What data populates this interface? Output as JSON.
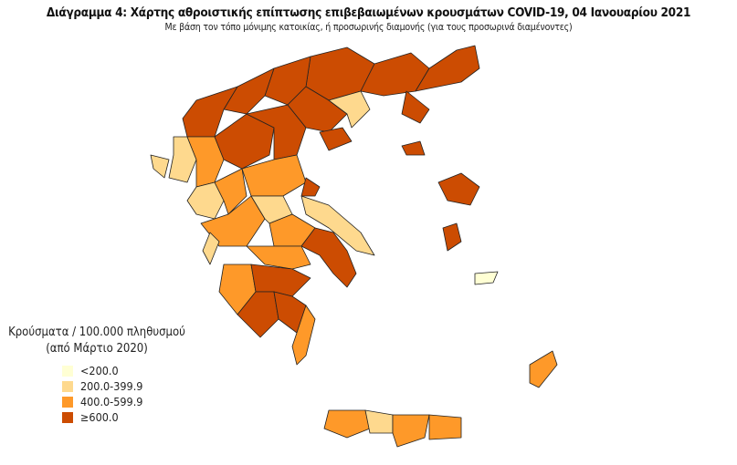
{
  "title": "Διάγραμμα 4: Χάρτης αθροιστικής επίπτωσης επιβεβαιωμένων κρουσμάτων COVID-19, 04 Ιανουαρίου 2021",
  "subtitle": "Με βάση τον τόπο μόνιμης κατοικίας, ή προσωρινής διαμονής (για τους προσωρινά διαμένοντες)",
  "legend": {
    "title_line1": "Κρούσματα / 100.000 πληθυσμού",
    "title_line2": "(από Μάρτιο 2020)",
    "items": [
      {
        "label": "<200.0",
        "color": "#ffffd4"
      },
      {
        "label": "200.0-399.9",
        "color": "#fed98e"
      },
      {
        "label": "400.0-599.9",
        "color": "#fe9929"
      },
      {
        "label": "≥600.0",
        "color": "#cc4c02"
      }
    ]
  },
  "map": {
    "border_color": "#222222",
    "region_levels": [
      3,
      3,
      3,
      3,
      3,
      3,
      1,
      2,
      3,
      1,
      2,
      3,
      3,
      1,
      2,
      2,
      1,
      2,
      1,
      3,
      2,
      3,
      3,
      3,
      3,
      3,
      2,
      3,
      3,
      3,
      2,
      2,
      1,
      2,
      2,
      3,
      0,
      1,
      1,
      2
    ]
  }
}
